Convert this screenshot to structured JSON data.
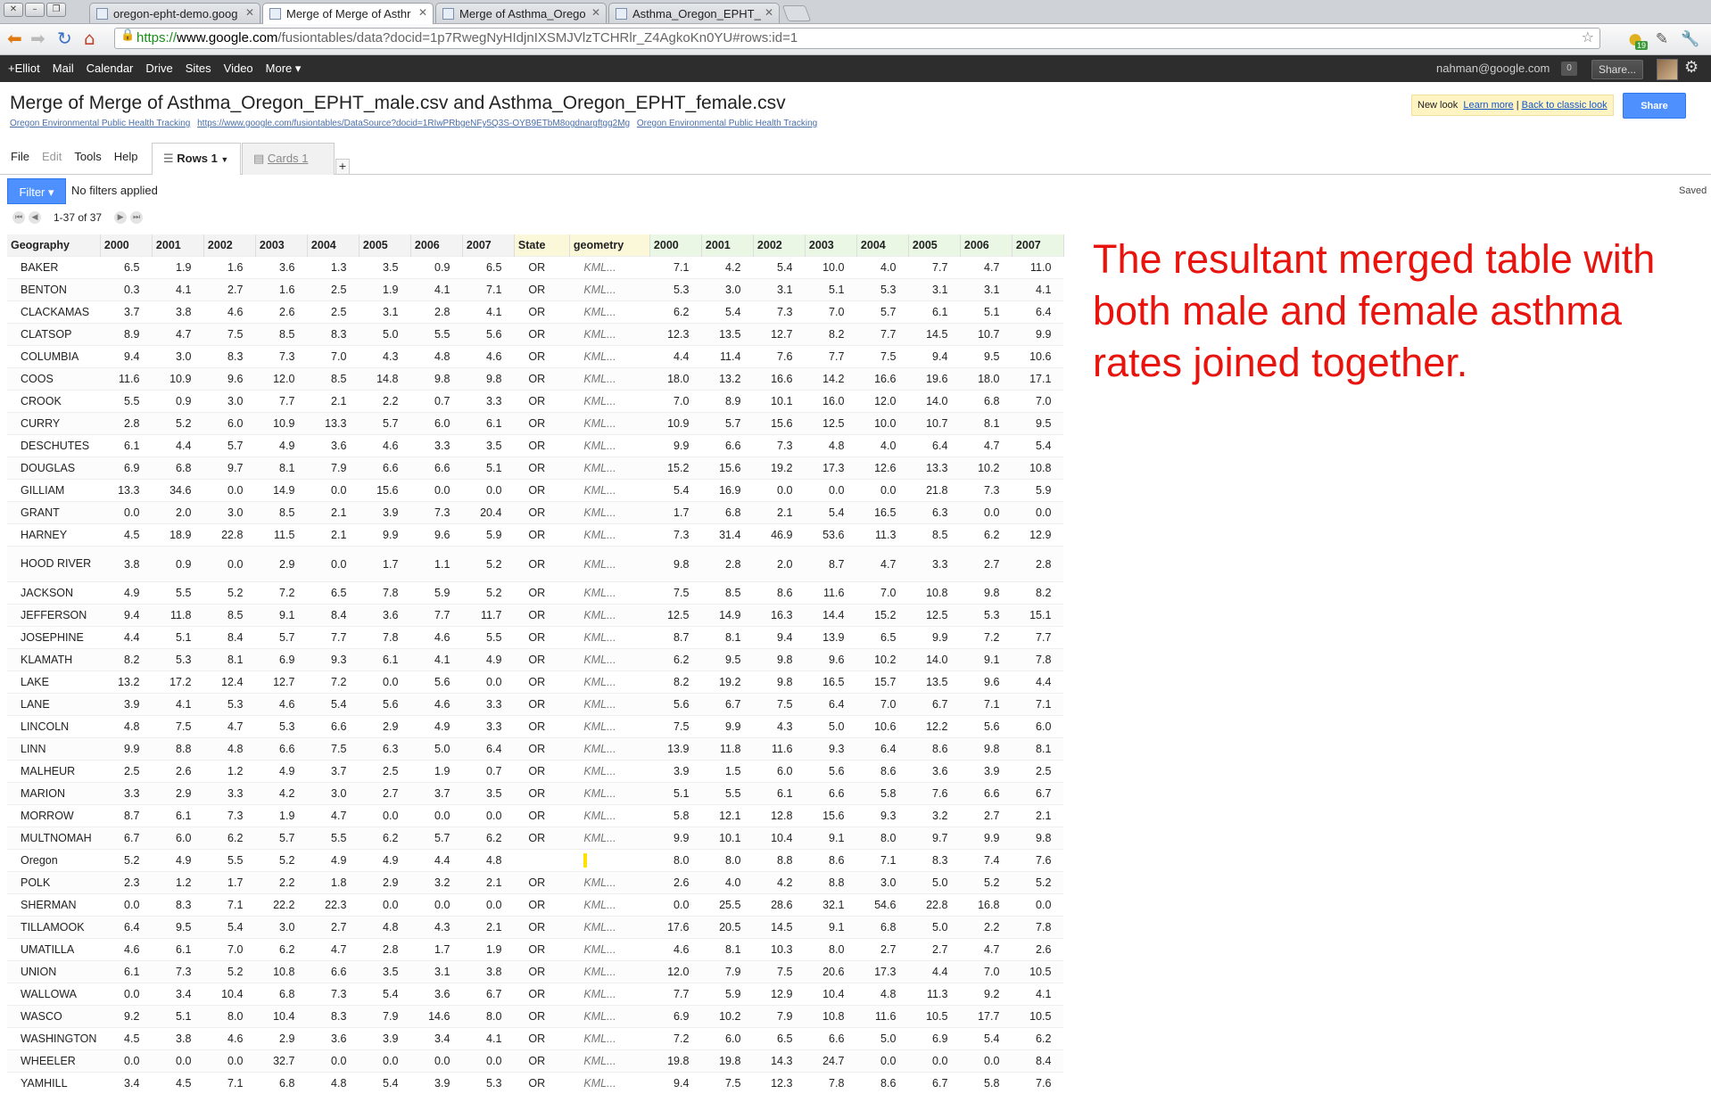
{
  "browser": {
    "tabs": [
      {
        "label": "oregon-epht-demo.goog"
      },
      {
        "label": "Merge of Merge of Asthr"
      },
      {
        "label": "Merge of Asthma_Orego"
      },
      {
        "label": "Asthma_Oregon_EPHT_"
      }
    ],
    "url_scheme": "https://",
    "url_domain": "www.google.com",
    "url_path": "/fusiontables/data?docid=1p7RwegNyHIdjnIXSMJVlzTCHRlr_Z4AgkoKn0YU#rows:id=1",
    "ext_badge": "19"
  },
  "gbar": {
    "links": [
      "+Elliot",
      "Mail",
      "Calendar",
      "Drive",
      "Sites",
      "Video",
      "More ▾"
    ],
    "email": "nahman@google.com",
    "notif_count": "0",
    "share_label": "Share..."
  },
  "doc": {
    "title": "Merge of Merge of Asthma_Oregon_EPHT_male.csv and Asthma_Oregon_EPHT_female.csv",
    "attribution": [
      "Oregon Environmental Public Health Tracking",
      "https://www.google.com/fusiontables/DataSource?docid=1RIwPRbgeNFy5Q3S-OYB9ETbM8ogdnargftgg2Mg",
      "Oregon Environmental Public Health Tracking"
    ],
    "new_look": "New look",
    "learn_more": "Learn more",
    "sep": "|",
    "classic": "Back to classic look",
    "share": "Share"
  },
  "menus": {
    "file": "File",
    "edit": "Edit",
    "tools": "Tools",
    "help": "Help"
  },
  "view_tabs": {
    "rows": "Rows 1",
    "cards": "Cards 1",
    "plus": "+"
  },
  "filter": {
    "button": "Filter ▾",
    "status": "No filters applied",
    "saved": "Saved"
  },
  "pager": {
    "text": "1-37 of 37"
  },
  "grid": {
    "headers": [
      "Geography",
      "2000",
      "2001",
      "2002",
      "2003",
      "2004",
      "2005",
      "2006",
      "2007",
      "State",
      "geometry",
      "2000",
      "2001",
      "2002",
      "2003",
      "2004",
      "2005",
      "2006",
      "2007"
    ],
    "rows": [
      [
        "BAKER",
        "6.5",
        "1.9",
        "1.6",
        "3.6",
        "1.3",
        "3.5",
        "0.9",
        "6.5",
        "OR",
        "KML...",
        "7.1",
        "4.2",
        "5.4",
        "10.0",
        "4.0",
        "7.7",
        "4.7",
        "11.0"
      ],
      [
        "BENTON",
        "0.3",
        "4.1",
        "2.7",
        "1.6",
        "2.5",
        "1.9",
        "4.1",
        "7.1",
        "OR",
        "KML...",
        "5.3",
        "3.0",
        "3.1",
        "5.1",
        "5.3",
        "3.1",
        "3.1",
        "4.1"
      ],
      [
        "CLACKAMAS",
        "3.7",
        "3.8",
        "4.6",
        "2.6",
        "2.5",
        "3.1",
        "2.8",
        "4.1",
        "OR",
        "KML...",
        "6.2",
        "5.4",
        "7.3",
        "7.0",
        "5.7",
        "6.1",
        "5.1",
        "6.4"
      ],
      [
        "CLATSOP",
        "8.9",
        "4.7",
        "7.5",
        "8.5",
        "8.3",
        "5.0",
        "5.5",
        "5.6",
        "OR",
        "KML...",
        "12.3",
        "13.5",
        "12.7",
        "8.2",
        "7.7",
        "14.5",
        "10.7",
        "9.9"
      ],
      [
        "COLUMBIA",
        "9.4",
        "3.0",
        "8.3",
        "7.3",
        "7.0",
        "4.3",
        "4.8",
        "4.6",
        "OR",
        "KML...",
        "4.4",
        "11.4",
        "7.6",
        "7.7",
        "7.5",
        "9.4",
        "9.5",
        "10.6"
      ],
      [
        "COOS",
        "11.6",
        "10.9",
        "9.6",
        "12.0",
        "8.5",
        "14.8",
        "9.8",
        "9.8",
        "OR",
        "KML...",
        "18.0",
        "13.2",
        "16.6",
        "14.2",
        "16.6",
        "19.6",
        "18.0",
        "17.1"
      ],
      [
        "CROOK",
        "5.5",
        "0.9",
        "3.0",
        "7.7",
        "2.1",
        "2.2",
        "0.7",
        "3.3",
        "OR",
        "KML...",
        "7.0",
        "8.9",
        "10.1",
        "16.0",
        "12.0",
        "14.0",
        "6.8",
        "7.0"
      ],
      [
        "CURRY",
        "2.8",
        "5.2",
        "6.0",
        "10.9",
        "13.3",
        "5.7",
        "6.0",
        "6.1",
        "OR",
        "KML...",
        "10.9",
        "5.7",
        "15.6",
        "12.5",
        "10.0",
        "10.7",
        "8.1",
        "9.5"
      ],
      [
        "DESCHUTES",
        "6.1",
        "4.4",
        "5.7",
        "4.9",
        "3.6",
        "4.6",
        "3.3",
        "3.5",
        "OR",
        "KML...",
        "9.9",
        "6.6",
        "7.3",
        "4.8",
        "4.0",
        "6.4",
        "4.7",
        "5.4"
      ],
      [
        "DOUGLAS",
        "6.9",
        "6.8",
        "9.7",
        "8.1",
        "7.9",
        "6.6",
        "6.6",
        "5.1",
        "OR",
        "KML...",
        "15.2",
        "15.6",
        "19.2",
        "17.3",
        "12.6",
        "13.3",
        "10.2",
        "10.8"
      ],
      [
        "GILLIAM",
        "13.3",
        "34.6",
        "0.0",
        "14.9",
        "0.0",
        "15.6",
        "0.0",
        "0.0",
        "OR",
        "KML...",
        "5.4",
        "16.9",
        "0.0",
        "0.0",
        "0.0",
        "21.8",
        "7.3",
        "5.9"
      ],
      [
        "GRANT",
        "0.0",
        "2.0",
        "3.0",
        "8.5",
        "2.1",
        "3.9",
        "7.3",
        "20.4",
        "OR",
        "KML...",
        "1.7",
        "6.8",
        "2.1",
        "5.4",
        "16.5",
        "6.3",
        "0.0",
        "0.0"
      ],
      [
        "HARNEY",
        "4.5",
        "18.9",
        "22.8",
        "11.5",
        "2.1",
        "9.9",
        "9.6",
        "5.9",
        "OR",
        "KML...",
        "7.3",
        "31.4",
        "46.9",
        "53.6",
        "11.3",
        "8.5",
        "6.2",
        "12.9"
      ],
      [
        "HOOD RIVER",
        "3.8",
        "0.9",
        "0.0",
        "2.9",
        "0.0",
        "1.7",
        "1.1",
        "5.2",
        "OR",
        "KML...",
        "9.8",
        "2.8",
        "2.0",
        "8.7",
        "4.7",
        "3.3",
        "2.7",
        "2.8"
      ],
      [
        "JACKSON",
        "4.9",
        "5.5",
        "5.2",
        "7.2",
        "6.5",
        "7.8",
        "5.9",
        "5.2",
        "OR",
        "KML...",
        "7.5",
        "8.5",
        "8.6",
        "11.6",
        "7.0",
        "10.8",
        "9.8",
        "8.2"
      ],
      [
        "JEFFERSON",
        "9.4",
        "11.8",
        "8.5",
        "9.1",
        "8.4",
        "3.6",
        "7.7",
        "11.7",
        "OR",
        "KML...",
        "12.5",
        "14.9",
        "16.3",
        "14.4",
        "15.2",
        "12.5",
        "5.3",
        "15.1"
      ],
      [
        "JOSEPHINE",
        "4.4",
        "5.1",
        "8.4",
        "5.7",
        "7.7",
        "7.8",
        "4.6",
        "5.5",
        "OR",
        "KML...",
        "8.7",
        "8.1",
        "9.4",
        "13.9",
        "6.5",
        "9.9",
        "7.2",
        "7.7"
      ],
      [
        "KLAMATH",
        "8.2",
        "5.3",
        "8.1",
        "6.9",
        "9.3",
        "6.1",
        "4.1",
        "4.9",
        "OR",
        "KML...",
        "6.2",
        "9.5",
        "9.8",
        "9.6",
        "10.2",
        "14.0",
        "9.1",
        "7.8"
      ],
      [
        "LAKE",
        "13.2",
        "17.2",
        "12.4",
        "12.7",
        "7.2",
        "0.0",
        "5.6",
        "0.0",
        "OR",
        "KML...",
        "8.2",
        "19.2",
        "9.8",
        "16.5",
        "15.7",
        "13.5",
        "9.6",
        "4.4"
      ],
      [
        "LANE",
        "3.9",
        "4.1",
        "5.3",
        "4.6",
        "5.4",
        "5.6",
        "4.6",
        "3.3",
        "OR",
        "KML...",
        "5.6",
        "6.7",
        "7.5",
        "6.4",
        "7.0",
        "6.7",
        "7.1",
        "7.1"
      ],
      [
        "LINCOLN",
        "4.8",
        "7.5",
        "4.7",
        "5.3",
        "6.6",
        "2.9",
        "4.9",
        "3.3",
        "OR",
        "KML...",
        "7.5",
        "9.9",
        "4.3",
        "5.0",
        "10.6",
        "12.2",
        "5.6",
        "6.0"
      ],
      [
        "LINN",
        "9.9",
        "8.8",
        "4.8",
        "6.6",
        "7.5",
        "6.3",
        "5.0",
        "6.4",
        "OR",
        "KML...",
        "13.9",
        "11.8",
        "11.6",
        "9.3",
        "6.4",
        "8.6",
        "9.8",
        "8.1"
      ],
      [
        "MALHEUR",
        "2.5",
        "2.6",
        "1.2",
        "4.9",
        "3.7",
        "2.5",
        "1.9",
        "0.7",
        "OR",
        "KML...",
        "3.9",
        "1.5",
        "6.0",
        "5.6",
        "8.6",
        "3.6",
        "3.9",
        "2.5"
      ],
      [
        "MARION",
        "3.3",
        "2.9",
        "3.3",
        "4.2",
        "3.0",
        "2.7",
        "3.7",
        "3.5",
        "OR",
        "KML...",
        "5.1",
        "5.5",
        "6.1",
        "6.6",
        "5.8",
        "7.6",
        "6.6",
        "6.7"
      ],
      [
        "MORROW",
        "8.7",
        "6.1",
        "7.3",
        "1.9",
        "4.7",
        "0.0",
        "0.0",
        "0.0",
        "OR",
        "KML...",
        "5.8",
        "12.1",
        "12.8",
        "15.6",
        "9.3",
        "3.2",
        "2.7",
        "2.1"
      ],
      [
        "MULTNOMAH",
        "6.7",
        "6.0",
        "6.2",
        "5.7",
        "5.5",
        "6.2",
        "5.7",
        "6.2",
        "OR",
        "KML...",
        "9.9",
        "10.1",
        "10.4",
        "9.1",
        "8.0",
        "9.7",
        "9.9",
        "9.8"
      ],
      [
        "Oregon",
        "5.2",
        "4.9",
        "5.5",
        "5.2",
        "4.9",
        "4.9",
        "4.4",
        "4.8",
        "",
        "",
        "8.0",
        "8.0",
        "8.8",
        "8.6",
        "7.1",
        "8.3",
        "7.4",
        "7.6"
      ],
      [
        "POLK",
        "2.3",
        "1.2",
        "1.7",
        "2.2",
        "1.8",
        "2.9",
        "3.2",
        "2.1",
        "OR",
        "KML...",
        "2.6",
        "4.0",
        "4.2",
        "8.8",
        "3.0",
        "5.0",
        "5.2",
        "5.2"
      ],
      [
        "SHERMAN",
        "0.0",
        "8.3",
        "7.1",
        "22.2",
        "22.3",
        "0.0",
        "0.0",
        "0.0",
        "OR",
        "KML...",
        "0.0",
        "25.5",
        "28.6",
        "32.1",
        "54.6",
        "22.8",
        "16.8",
        "0.0"
      ],
      [
        "TILLAMOOK",
        "6.4",
        "9.5",
        "5.4",
        "3.0",
        "2.7",
        "4.8",
        "4.3",
        "2.1",
        "OR",
        "KML...",
        "17.6",
        "20.5",
        "14.5",
        "9.1",
        "6.8",
        "5.0",
        "2.2",
        "7.8"
      ],
      [
        "UMATILLA",
        "4.6",
        "6.1",
        "7.0",
        "6.2",
        "4.7",
        "2.8",
        "1.7",
        "1.9",
        "OR",
        "KML...",
        "4.6",
        "8.1",
        "10.3",
        "8.0",
        "2.7",
        "2.7",
        "4.7",
        "2.6"
      ],
      [
        "UNION",
        "6.1",
        "7.3",
        "5.2",
        "10.8",
        "6.6",
        "3.5",
        "3.1",
        "3.8",
        "OR",
        "KML...",
        "12.0",
        "7.9",
        "7.5",
        "20.6",
        "17.3",
        "4.4",
        "7.0",
        "10.5"
      ],
      [
        "WALLOWA",
        "0.0",
        "3.4",
        "10.4",
        "6.8",
        "7.3",
        "5.4",
        "3.6",
        "6.7",
        "OR",
        "KML...",
        "7.7",
        "5.9",
        "12.9",
        "10.4",
        "4.8",
        "11.3",
        "9.2",
        "4.1"
      ],
      [
        "WASCO",
        "9.2",
        "5.1",
        "8.0",
        "10.4",
        "8.3",
        "7.9",
        "14.6",
        "8.0",
        "OR",
        "KML...",
        "6.9",
        "10.2",
        "7.9",
        "10.8",
        "11.6",
        "10.5",
        "17.7",
        "10.5"
      ],
      [
        "WASHINGTON",
        "4.5",
        "3.8",
        "4.6",
        "2.9",
        "3.6",
        "3.9",
        "3.4",
        "4.1",
        "OR",
        "KML...",
        "7.2",
        "6.0",
        "6.5",
        "6.6",
        "5.0",
        "6.9",
        "5.4",
        "6.2"
      ],
      [
        "WHEELER",
        "0.0",
        "0.0",
        "0.0",
        "32.7",
        "0.0",
        "0.0",
        "0.0",
        "0.0",
        "OR",
        "KML...",
        "19.8",
        "19.8",
        "14.3",
        "24.7",
        "0.0",
        "0.0",
        "0.0",
        "8.4"
      ],
      [
        "YAMHILL",
        "3.4",
        "4.5",
        "7.1",
        "6.8",
        "4.8",
        "5.4",
        "3.9",
        "5.3",
        "OR",
        "KML...",
        "9.4",
        "7.5",
        "12.3",
        "7.8",
        "8.6",
        "6.7",
        "5.8",
        "7.6"
      ]
    ]
  },
  "annotation": "The resultant merged table with both male and female asthma rates joined together.",
  "colors": {
    "accent": "#4d90fe",
    "annotation": "#e8130c",
    "gbar": "#2d2d2d"
  }
}
